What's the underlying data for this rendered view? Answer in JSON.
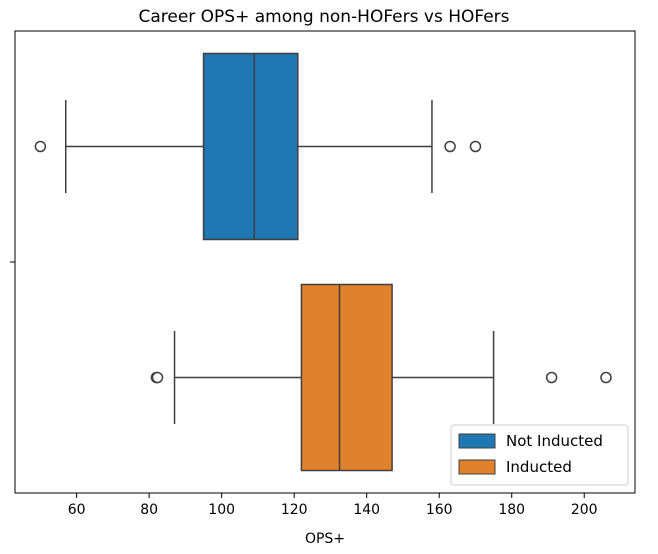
{
  "chart_data": {
    "type": "boxplot",
    "orientation": "horizontal",
    "title": "Career OPS+ among non-HOFers vs HOFers",
    "xlabel": "OPS+",
    "ylabel": "",
    "xlim": [
      43,
      214
    ],
    "xticks": [
      60,
      80,
      100,
      120,
      140,
      160,
      180,
      200
    ],
    "grid": false,
    "legend_position": "lower-right",
    "series": [
      {
        "name": "Not Inducted",
        "color": "#1f77b4",
        "whisker_low": 57,
        "q1": 95,
        "median": 109,
        "q3": 121,
        "whisker_high": 158,
        "outliers": [
          50,
          163,
          170
        ]
      },
      {
        "name": "Inducted",
        "color": "#e1812c",
        "whisker_low": 87,
        "q1": 122,
        "median": 132.5,
        "q3": 147,
        "whisker_high": 175,
        "outliers": [
          82,
          82.3,
          191,
          206
        ]
      }
    ]
  }
}
